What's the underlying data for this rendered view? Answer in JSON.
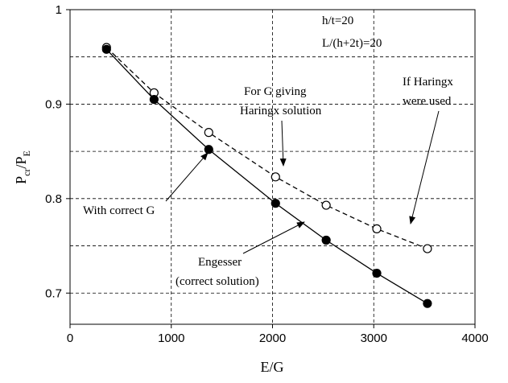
{
  "chart_data": {
    "type": "scatter",
    "xlabel": "E/G",
    "ylabel_parts": [
      "P",
      "cr",
      "/P",
      "E"
    ],
    "xlim": [
      0,
      4000
    ],
    "xticks": [
      0,
      1000,
      2000,
      3000,
      4000
    ],
    "ylim": [
      0.667,
      1
    ],
    "yticks": [
      {
        "value": 0.7,
        "label": "0.7"
      },
      {
        "value": 0.8,
        "label": "0.8"
      },
      {
        "value": 0.9,
        "label": "0.9"
      },
      1
    ],
    "y_minor_grid": [
      0.75,
      0.85,
      0.95
    ],
    "grid": true,
    "series": [
      {
        "name": "If Haringx were used",
        "color": "#000000",
        "marker": "open",
        "line": "dashed",
        "x": [
          360,
          830,
          1370,
          2030,
          2530,
          3030,
          3530
        ],
        "values": [
          0.96,
          0.912,
          0.87,
          0.823,
          0.793,
          0.768,
          0.747
        ]
      },
      {
        "name": "Engesser (correct solution)",
        "color": "#000000",
        "marker": "filled",
        "line": "solid",
        "x": [
          360,
          830,
          1370,
          2030,
          2530,
          3030,
          3530
        ],
        "values": [
          0.958,
          0.905,
          0.852,
          0.795,
          0.756,
          0.721,
          0.689
        ]
      }
    ],
    "annotations": [
      "h/t=20",
      "L/(h+2t)=20",
      "For G giving",
      "Haringx solution",
      "If Haringx",
      "were used",
      "With correct G",
      "Engesser",
      "(correct solution)"
    ]
  }
}
